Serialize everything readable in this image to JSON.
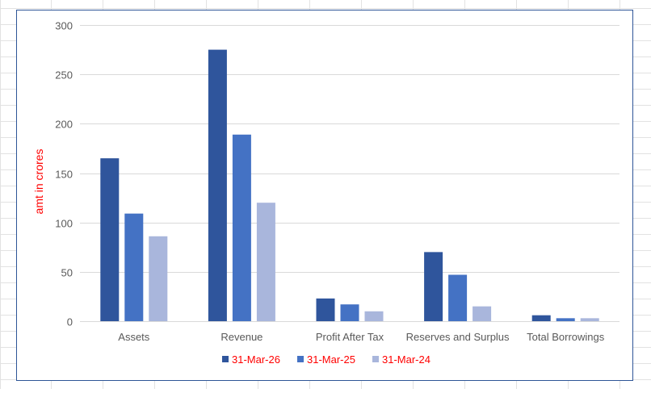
{
  "chart_data": {
    "type": "bar",
    "title": "",
    "xlabel": "",
    "ylabel": "amt in crores",
    "ylim": [
      0,
      300
    ],
    "yticks": [
      0,
      50,
      100,
      150,
      200,
      250,
      300
    ],
    "categories": [
      "Assets",
      "Revenue",
      "Profit After Tax",
      "Reserves and Surplus",
      "Total Borrowings"
    ],
    "series": [
      {
        "name": "31-Mar-26",
        "color": "#2f559c",
        "values": [
          165,
          275,
          23,
          70,
          6
        ]
      },
      {
        "name": "31-Mar-25",
        "color": "#4472c4",
        "values": [
          109,
          189,
          17,
          47,
          3
        ]
      },
      {
        "name": "31-Mar-24",
        "color": "#a9b6dc",
        "values": [
          86,
          120,
          10,
          15,
          3
        ]
      }
    ],
    "grid": true,
    "legend_position": "bottom",
    "colors": {
      "gridline": "#d9d9d9",
      "axis_text": "#595959",
      "ylabel": "#ff0000",
      "legend_text": "#ff0000",
      "frame": "#2e5597",
      "sheet_grid": "#e2e2e2"
    }
  }
}
